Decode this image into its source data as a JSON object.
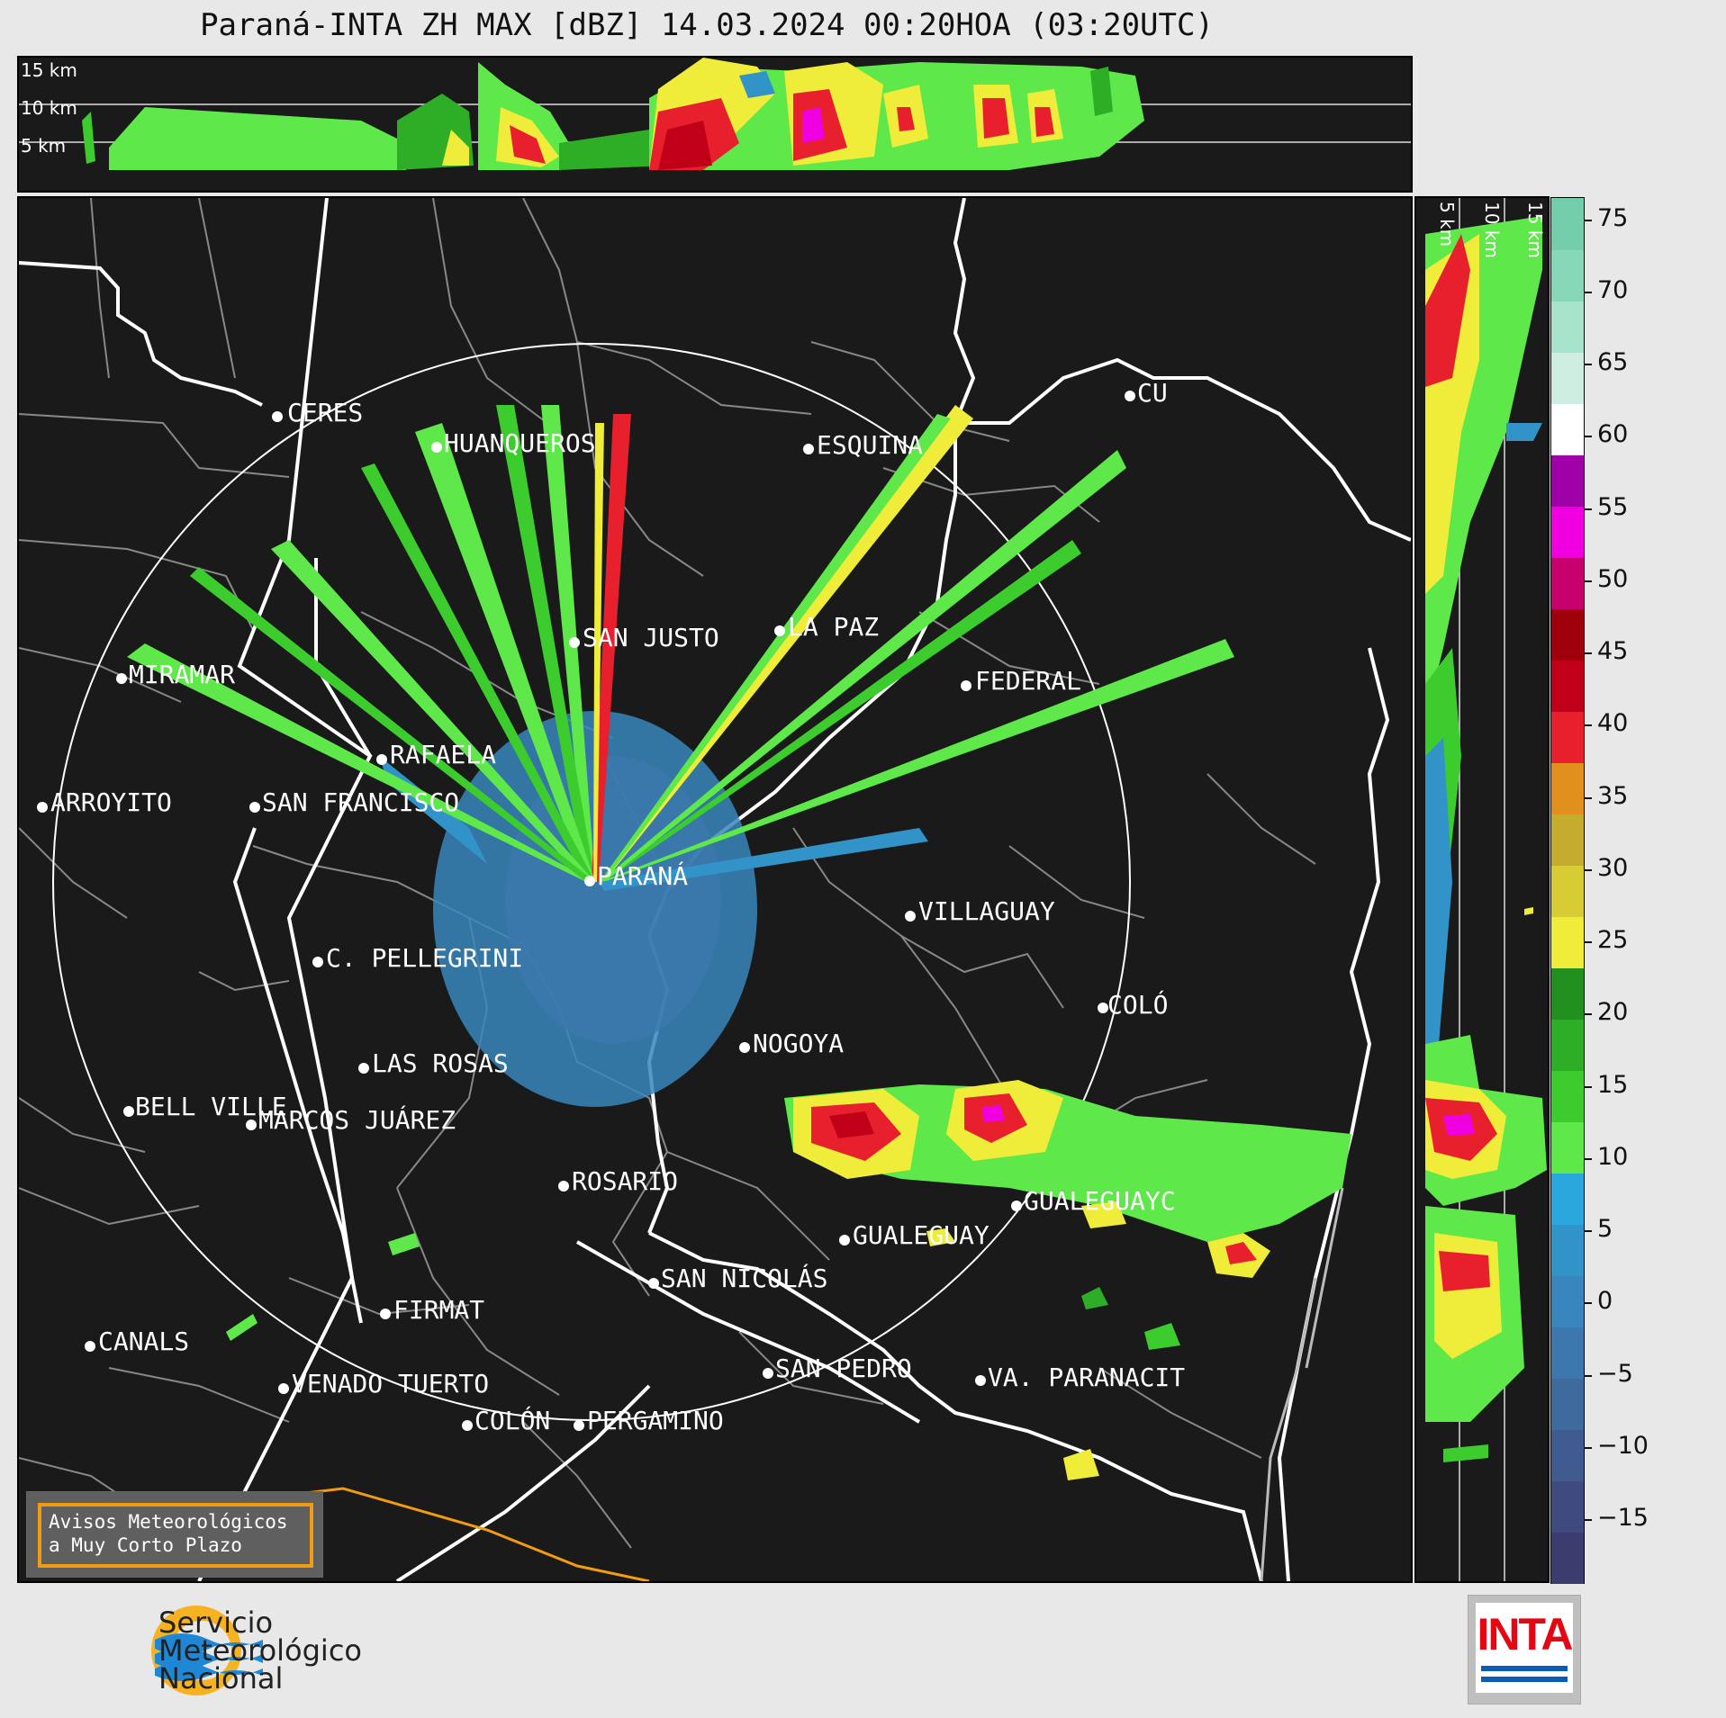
{
  "title": "Paraná-INTA ZH MAX [dBZ] 14.03.2024 00:20HOA (03:20UTC)",
  "top_panel": {
    "height_labels": [
      "15 km",
      "10 km",
      "5 km"
    ]
  },
  "side_panel": {
    "height_labels": [
      "5 km",
      "10 km",
      "15 km"
    ]
  },
  "colorbar": {
    "ticks": [
      "75",
      "70",
      "65",
      "60",
      "55",
      "50",
      "45",
      "40",
      "35",
      "30",
      "25",
      "20",
      "15",
      "10",
      "5",
      "0",
      "−5",
      "−10",
      "−15"
    ],
    "colors": [
      "#3c3c6e",
      "#3f4b7f",
      "#3f5b8f",
      "#3f6a9e",
      "#3c78ad",
      "#3886bc",
      "#3293c9",
      "#2aa8de",
      "#5ee84a",
      "#3ccc2e",
      "#2eae26",
      "#22901e",
      "#f0ec3a",
      "#d8cc34",
      "#c4ac2e",
      "#e0901c",
      "#e8202e",
      "#c00018",
      "#a0000c",
      "#c8006e",
      "#f000e0",
      "#a000a8",
      "#ffffff",
      "#cdeee0",
      "#a8e4cc",
      "#86d8b8",
      "#74ceac"
    ]
  },
  "cities": [
    {
      "name": "CERES"
    },
    {
      "name": "HUANQUEROS"
    },
    {
      "name": "ESQUINA"
    },
    {
      "name": "CU"
    },
    {
      "name": "SAN JUSTO"
    },
    {
      "name": "LA PAZ"
    },
    {
      "name": "MIRAMAR"
    },
    {
      "name": "FEDERAL"
    },
    {
      "name": "RAFAELA"
    },
    {
      "name": "ARROYITO"
    },
    {
      "name": "SAN FRANCISCO"
    },
    {
      "name": "PARANÁ"
    },
    {
      "name": "VILLAGUAY"
    },
    {
      "name": "C. PELLEGRINI"
    },
    {
      "name": "COLÓ"
    },
    {
      "name": "NOGOYA"
    },
    {
      "name": "LAS ROSAS"
    },
    {
      "name": "BELL VILLE"
    },
    {
      "name": "MARCOS JUÁREZ"
    },
    {
      "name": "ROSARIO"
    },
    {
      "name": "GUALEGUAYC"
    },
    {
      "name": "GUALEGUAY"
    },
    {
      "name": "SAN NICOLÁS"
    },
    {
      "name": "FIRMAT"
    },
    {
      "name": "CANALS"
    },
    {
      "name": "SAN PEDRO"
    },
    {
      "name": "VENADO TUERTO"
    },
    {
      "name": "VA. PARANACIT"
    },
    {
      "name": "COLÓN"
    },
    {
      "name": "PERGAMINO"
    }
  ],
  "warning_box": {
    "line1": "Avisos Meteorológicos",
    "line2": "a Muy Corto Plazo"
  },
  "smn_logo": {
    "line1": "Servicio",
    "line2": "Meteorológico",
    "line3": "Nacional"
  },
  "inta_logo": {
    "word": "INTA"
  }
}
